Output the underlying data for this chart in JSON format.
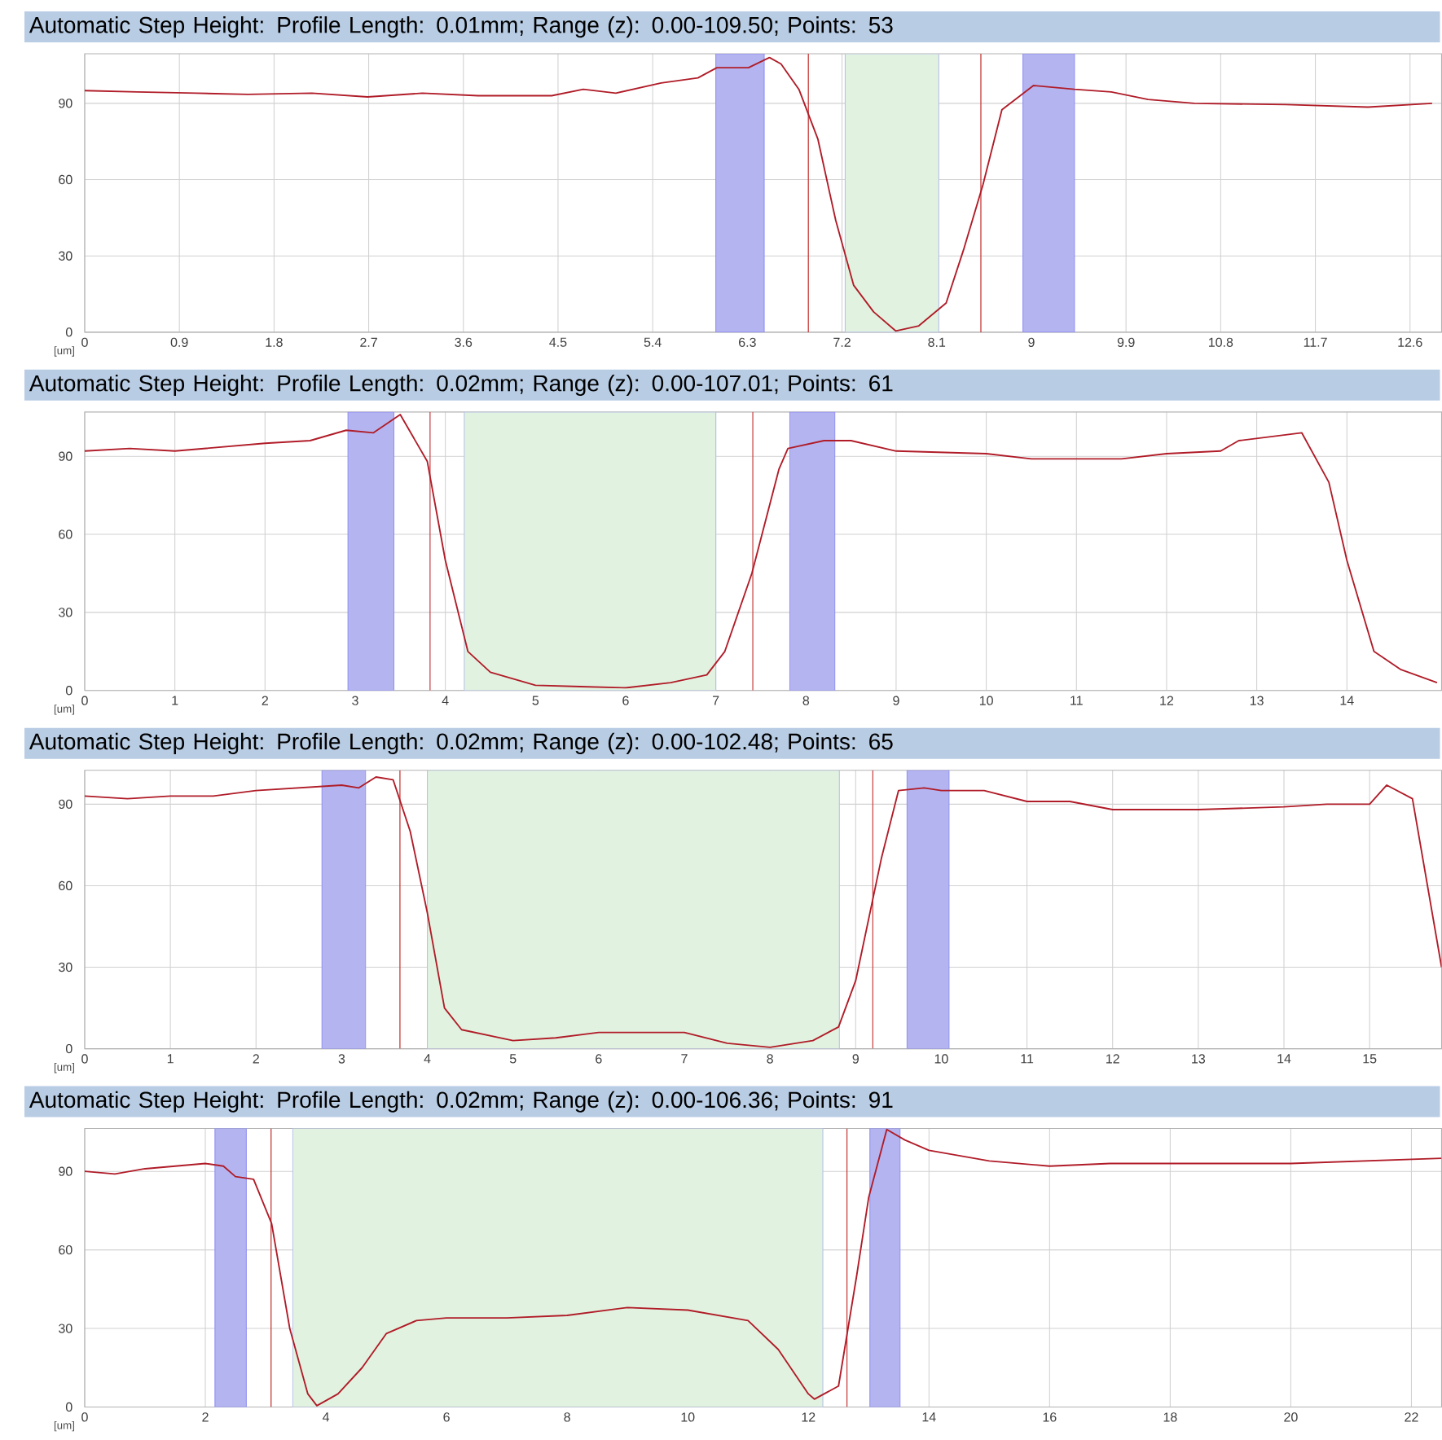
{
  "chart_data": [
    {
      "type": "line",
      "title": "Automatic Step Height: Profile Length: 0.01mm; Range (z): 0.00-109.50; Points: 53",
      "xlabel": "[um]",
      "grid": true,
      "xlim": [
        0,
        12.9
      ],
      "ylim": [
        0,
        109.5
      ],
      "xticks": [
        0,
        0.9,
        1.8,
        2.7,
        3.6,
        4.5,
        5.4,
        6.3,
        7.2,
        8.1,
        9,
        9.9,
        10.8,
        11.7,
        12.6
      ],
      "yticks": [
        0,
        30,
        60,
        90
      ],
      "bands": [
        {
          "axis": "x",
          "from": 6.0,
          "to": 6.46,
          "color": "#b4b4f0"
        },
        {
          "axis": "x",
          "from": 7.23,
          "to": 8.12,
          "color": "#e2f2e0"
        },
        {
          "axis": "x",
          "from": 8.92,
          "to": 9.41,
          "color": "#b4b4f0"
        }
      ],
      "ref_lines": [
        {
          "axis": "x",
          "value": 6.88,
          "color": "#c84040"
        },
        {
          "axis": "x",
          "value": 8.52,
          "color": "#c84040"
        }
      ],
      "series": [
        {
          "color": "#b01c28",
          "x": [
            0,
            0.5,
            1.06,
            1.55,
            2.16,
            2.69,
            3.21,
            3.74,
            4.44,
            4.74,
            5.05,
            5.48,
            5.83,
            6.01,
            6.31,
            6.51,
            6.62,
            6.79,
            6.97,
            7.14,
            7.31,
            7.5,
            7.71,
            7.93,
            8.19,
            8.36,
            8.54,
            8.72,
            9.02,
            9.41,
            9.76,
            10.11,
            10.55,
            11.42,
            12.2,
            12.81
          ],
          "values": [
            95,
            94.5,
            94,
            93.5,
            94,
            92.5,
            94,
            93,
            93,
            95.5,
            94,
            98,
            100,
            104,
            104,
            108,
            105.5,
            95.5,
            76,
            44,
            18.5,
            8,
            0.5,
            2.5,
            11.5,
            33,
            58,
            87.5,
            97,
            95.5,
            94.5,
            91.5,
            90,
            89.5,
            88.5,
            90
          ]
        }
      ]
    },
    {
      "type": "line",
      "title": "Automatic Step Height: Profile Length: 0.02mm; Range (z): 0.00-107.01; Points: 61",
      "xlabel": "[um]",
      "grid": true,
      "xlim": [
        0,
        15.05
      ],
      "ylim": [
        0,
        107.01
      ],
      "xticks": [
        0,
        1,
        2,
        3,
        4,
        5,
        6,
        7,
        8,
        9,
        10,
        11,
        12,
        13,
        14
      ],
      "yticks": [
        0,
        30,
        60,
        90
      ],
      "bands": [
        {
          "axis": "x",
          "from": 2.92,
          "to": 3.43,
          "color": "#b4b4f0"
        },
        {
          "axis": "x",
          "from": 4.21,
          "to": 7.0,
          "color": "#e2f2e0"
        },
        {
          "axis": "x",
          "from": 7.82,
          "to": 8.32,
          "color": "#b4b4f0"
        }
      ],
      "ref_lines": [
        {
          "axis": "x",
          "value": 3.83,
          "color": "#c84040"
        },
        {
          "axis": "x",
          "value": 7.41,
          "color": "#c84040"
        }
      ],
      "series": [
        {
          "color": "#b01c28",
          "x": [
            0,
            0.5,
            1,
            2,
            2.5,
            2.9,
            3.2,
            3.5,
            3.8,
            4,
            4.25,
            4.5,
            5,
            5.5,
            6,
            6.5,
            6.9,
            7.1,
            7.4,
            7.7,
            7.8,
            8.2,
            8.5,
            9,
            10,
            10.5,
            11.5,
            12,
            12.6,
            12.8,
            13.5,
            13.8,
            14,
            14.3,
            14.6,
            15
          ],
          "values": [
            92,
            93,
            92,
            95,
            96,
            100,
            99,
            106,
            88,
            50,
            15,
            7,
            2,
            1.5,
            1,
            3,
            6,
            15,
            45,
            85,
            93,
            96,
            96,
            92,
            91,
            89,
            89,
            91,
            92,
            96,
            99,
            80,
            50,
            15,
            8,
            3
          ]
        }
      ]
    },
    {
      "type": "line",
      "title": "Automatic Step Height: Profile Length: 0.02mm; Range (z): 0.00-102.48; Points: 65",
      "xlabel": "[um]",
      "grid": true,
      "xlim": [
        0,
        15.84
      ],
      "ylim": [
        0,
        102.48
      ],
      "xticks": [
        0,
        1,
        2,
        3,
        4,
        5,
        6,
        7,
        8,
        9,
        10,
        11,
        12,
        13,
        14,
        15
      ],
      "yticks": [
        0,
        30,
        60,
        90
      ],
      "bands": [
        {
          "axis": "x",
          "from": 2.77,
          "to": 3.28,
          "color": "#b4b4f0"
        },
        {
          "axis": "x",
          "from": 4.0,
          "to": 8.81,
          "color": "#e2f2e0"
        },
        {
          "axis": "x",
          "from": 9.6,
          "to": 10.09,
          "color": "#b4b4f0"
        }
      ],
      "ref_lines": [
        {
          "axis": "x",
          "value": 3.68,
          "color": "#c84040"
        },
        {
          "axis": "x",
          "value": 9.2,
          "color": "#c84040"
        }
      ],
      "series": [
        {
          "color": "#b01c28",
          "x": [
            0,
            0.5,
            1,
            1.5,
            2,
            3,
            3.2,
            3.4,
            3.6,
            3.8,
            4,
            4.2,
            4.4,
            5,
            5.5,
            6,
            6.5,
            7,
            7.5,
            8,
            8.5,
            8.8,
            9,
            9.3,
            9.5,
            9.8,
            10,
            10.5,
            11,
            11.5,
            12,
            13,
            14,
            14.5,
            15,
            15.2,
            15.5,
            15.84
          ],
          "values": [
            93,
            92,
            93,
            93,
            95,
            97,
            96,
            100,
            99,
            80,
            50,
            15,
            7,
            3,
            4,
            6,
            6,
            6,
            2,
            0.5,
            3,
            8,
            25,
            70,
            95,
            96,
            95,
            95,
            91,
            91,
            88,
            88,
            89,
            90,
            90,
            97,
            92,
            30
          ]
        }
      ]
    },
    {
      "type": "line",
      "title": "Automatic Step Height: Profile Length: 0.02mm; Range (z): 0.00-106.36; Points: 91",
      "xlabel": "[um]",
      "grid": true,
      "xlim": [
        0,
        22.5
      ],
      "ylim": [
        0,
        106.36
      ],
      "xticks": [
        0,
        2,
        4,
        6,
        8,
        10,
        12,
        14,
        16,
        18,
        20,
        22
      ],
      "yticks": [
        0,
        30,
        60,
        90
      ],
      "bands": [
        {
          "axis": "x",
          "from": 2.16,
          "to": 2.68,
          "color": "#b4b4f0"
        },
        {
          "axis": "x",
          "from": 3.45,
          "to": 12.24,
          "color": "#e2f2e0"
        },
        {
          "axis": "x",
          "from": 13.02,
          "to": 13.52,
          "color": "#b4b4f0"
        }
      ],
      "ref_lines": [
        {
          "axis": "x",
          "value": 3.09,
          "color": "#c84040"
        },
        {
          "axis": "x",
          "value": 12.64,
          "color": "#c84040"
        }
      ],
      "series": [
        {
          "color": "#b01c28",
          "x": [
            0,
            0.5,
            1,
            2,
            2.3,
            2.5,
            2.8,
            3.1,
            3.4,
            3.7,
            3.85,
            4.2,
            4.6,
            5,
            5.5,
            6,
            7,
            8,
            9,
            10,
            11,
            11.5,
            12,
            12.1,
            12.5,
            12.8,
            13,
            13.3,
            13.6,
            14,
            15,
            16,
            17,
            18,
            20,
            22.5
          ],
          "values": [
            90,
            89,
            91,
            93,
            92,
            88,
            87,
            70,
            30,
            5,
            0.5,
            5,
            15,
            28,
            33,
            34,
            34,
            35,
            38,
            37,
            33,
            22,
            5,
            3,
            8,
            50,
            80,
            106,
            102,
            98,
            94,
            92,
            93,
            93,
            93,
            95
          ]
        }
      ]
    }
  ]
}
